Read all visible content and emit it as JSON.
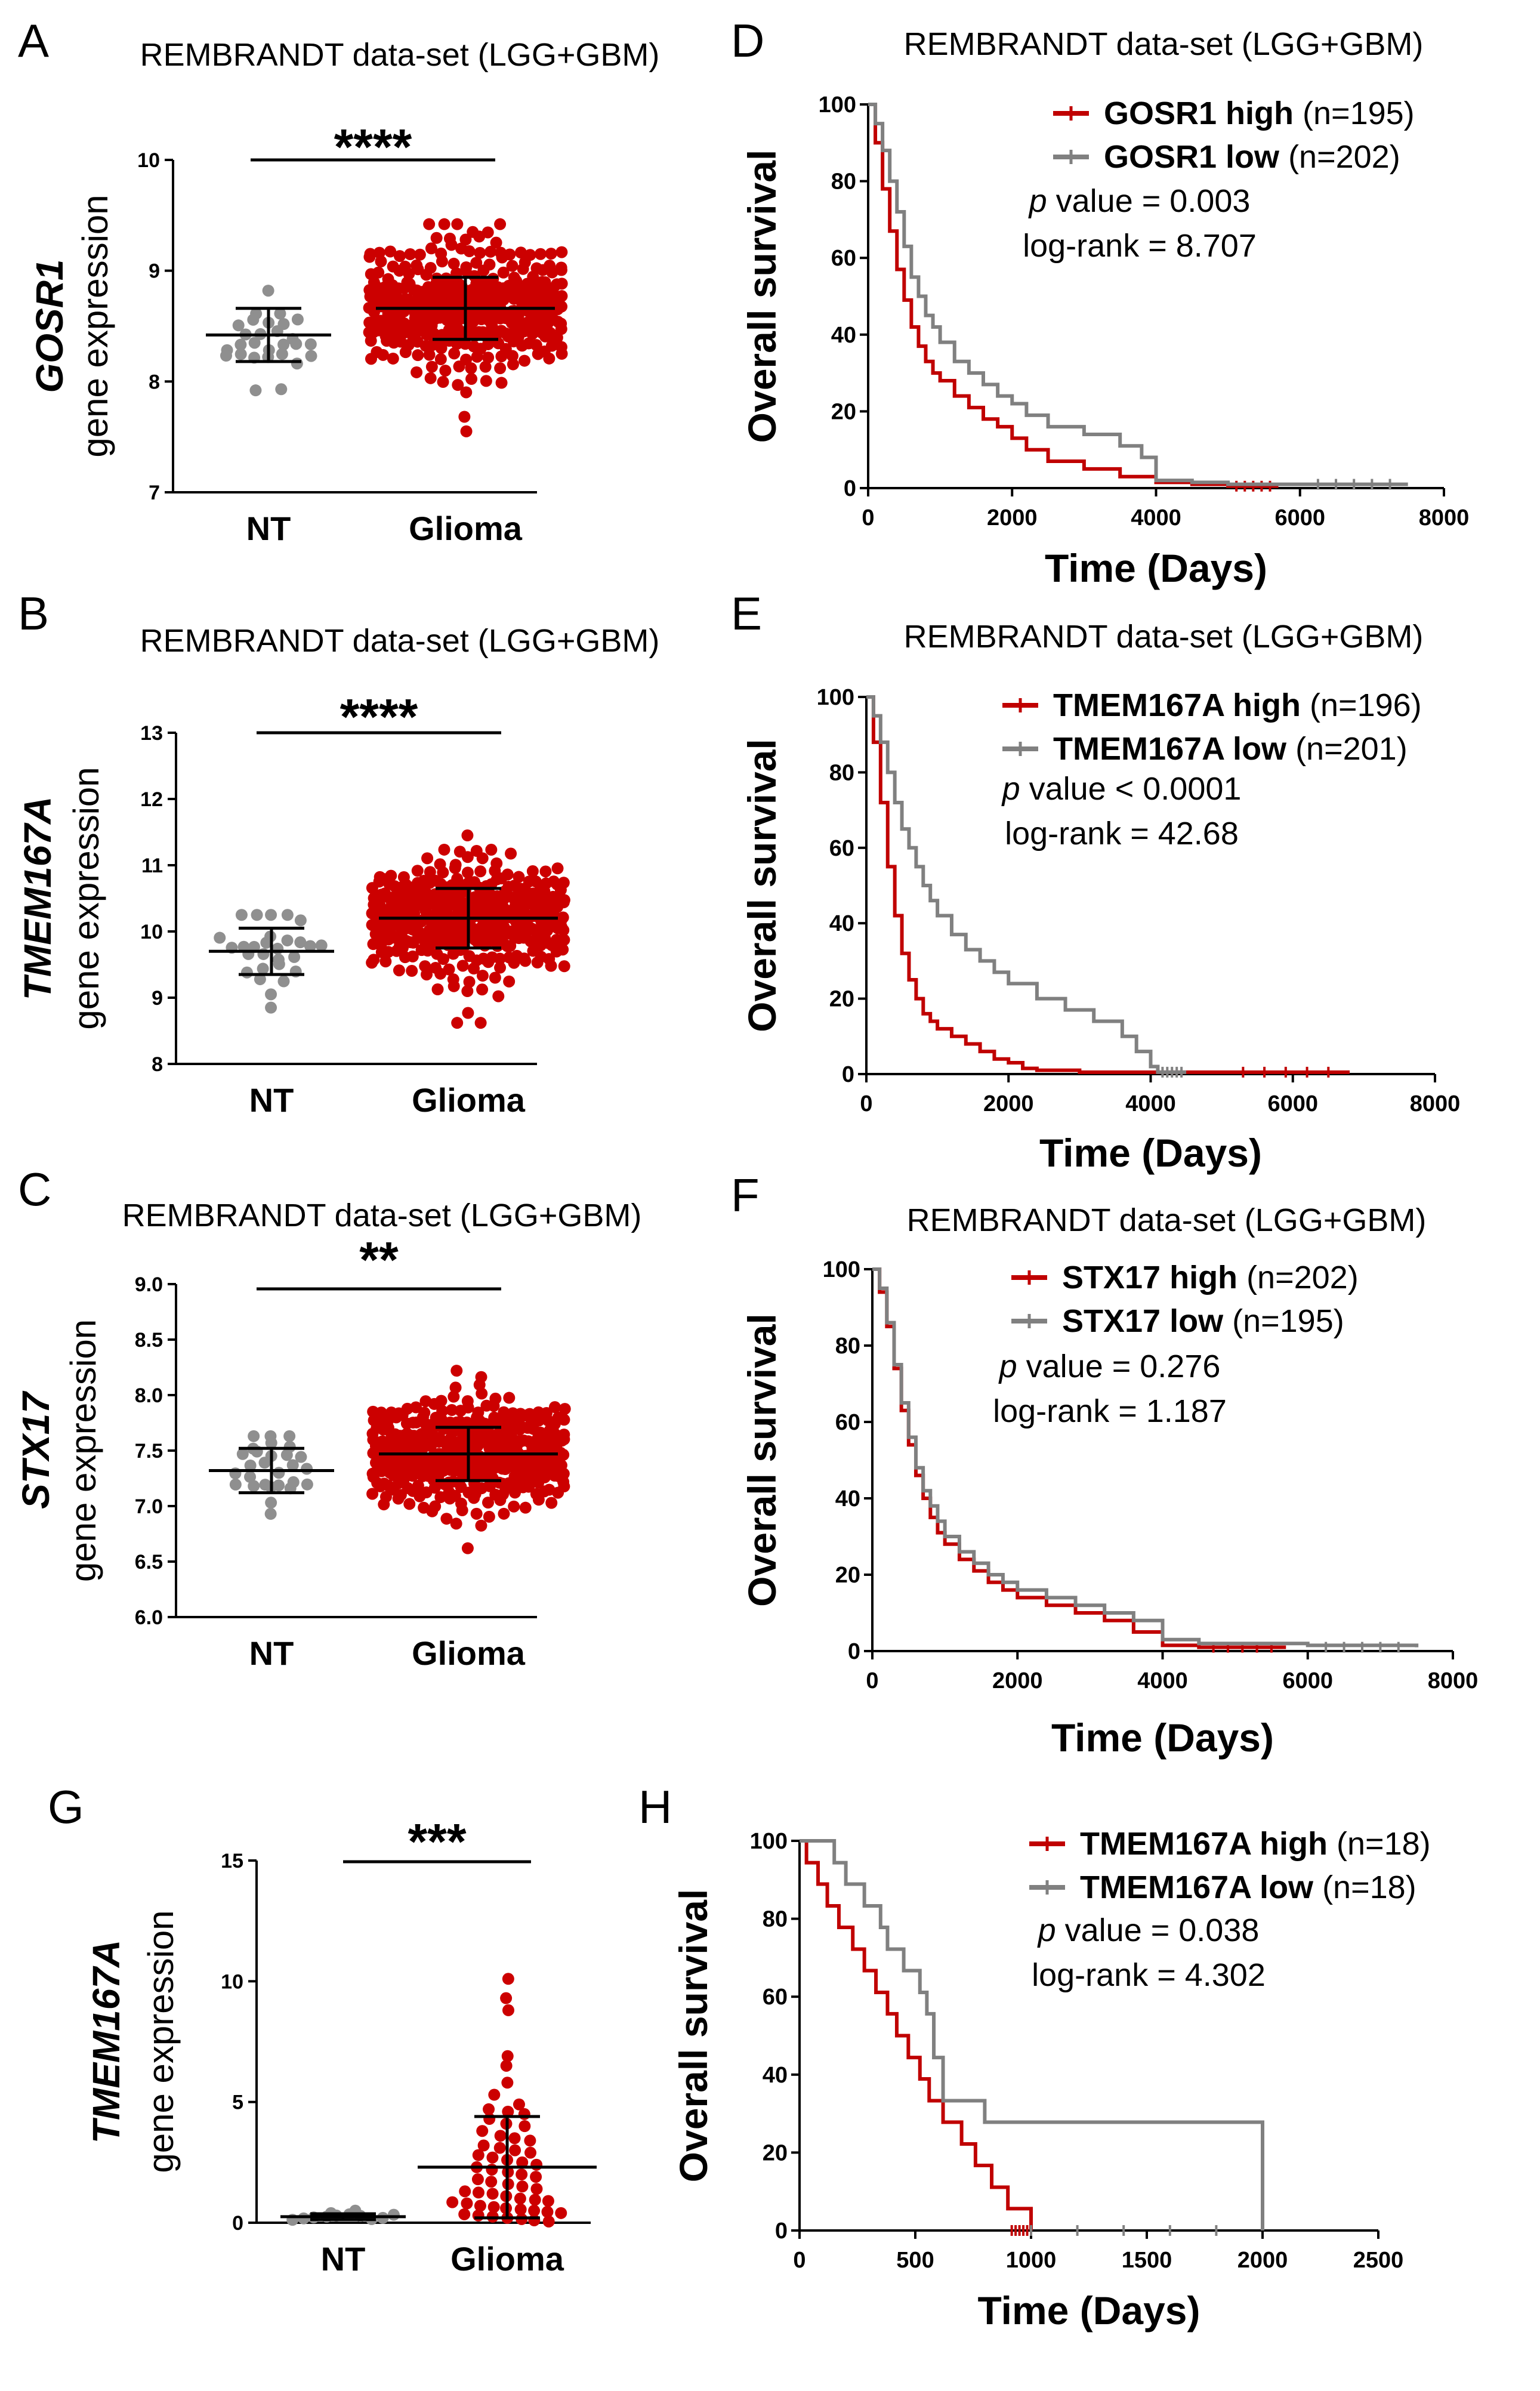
{
  "colors": {
    "high": "#c00000",
    "low": "#808080",
    "nt_dot": "#8f8f8f",
    "glioma_dot": "#cc0000",
    "axis": "#000000"
  },
  "chart_data": [
    {
      "panel": "A",
      "type": "scatter",
      "title": "REMBRANDT data-set (LGG+GBM)",
      "ylabel_gene": "GOSR1",
      "ylabel_suffix": "gene expression",
      "ylim": [
        7,
        10
      ],
      "yticks": [
        7,
        8,
        9,
        10
      ],
      "ytick_labels": [
        "7",
        "8",
        "9",
        "10"
      ],
      "categories": [
        "NT",
        "Glioma"
      ],
      "significance": "****",
      "groups": [
        {
          "name": "NT",
          "n": 28,
          "mean": 8.42,
          "sd": 0.24,
          "min": 7.92,
          "max": 8.82
        },
        {
          "name": "Glioma",
          "n": 420,
          "mean": 8.66,
          "sd": 0.28,
          "min": 7.55,
          "max": 9.42
        }
      ]
    },
    {
      "panel": "B",
      "type": "scatter",
      "title": "REMBRANDT data-set (LGG+GBM)",
      "ylabel_gene": "TMEM167A",
      "ylabel_suffix": "gene expression",
      "ylim": [
        8,
        13
      ],
      "yticks": [
        8,
        9,
        10,
        11,
        12,
        13
      ],
      "ytick_labels": [
        "8",
        "9",
        "10",
        "11",
        "12",
        "13"
      ],
      "categories": [
        "NT",
        "Glioma"
      ],
      "significance": "****",
      "groups": [
        {
          "name": "NT",
          "n": 28,
          "mean": 9.7,
          "sd": 0.35,
          "min": 8.85,
          "max": 10.25
        },
        {
          "name": "Glioma",
          "n": 420,
          "mean": 10.2,
          "sd": 0.45,
          "min": 8.62,
          "max": 11.45
        }
      ]
    },
    {
      "panel": "C",
      "type": "scatter",
      "title": "REMBRANDT data-set (LGG+GBM)",
      "ylabel_gene": "STX17",
      "ylabel_suffix": "gene expression",
      "ylim": [
        6.0,
        9.0
      ],
      "yticks": [
        6.0,
        6.5,
        7.0,
        7.5,
        8.0,
        8.5,
        9.0
      ],
      "ytick_labels": [
        "6.0",
        "6.5",
        "7.0",
        "7.5",
        "8.0",
        "8.5",
        "9.0"
      ],
      "categories": [
        "NT",
        "Glioma"
      ],
      "significance": "**",
      "groups": [
        {
          "name": "NT",
          "n": 28,
          "mean": 7.32,
          "sd": 0.2,
          "min": 6.93,
          "max": 7.63
        },
        {
          "name": "Glioma",
          "n": 420,
          "mean": 7.47,
          "sd": 0.24,
          "min": 6.62,
          "max": 8.22
        }
      ]
    },
    {
      "panel": "G",
      "type": "scatter",
      "title": "",
      "ylabel_gene": "TMEM167A",
      "ylabel_suffix": "gene expression",
      "ylim": [
        0,
        15
      ],
      "yticks": [
        0,
        5,
        10,
        15
      ],
      "ytick_labels": [
        "0",
        "5",
        "10",
        "15"
      ],
      "categories": [
        "NT",
        "Glioma"
      ],
      "significance": "***",
      "groups": [
        {
          "name": "NT",
          "n": 12,
          "mean": 0.25,
          "sd": 0.12,
          "min": 0.05,
          "max": 0.55,
          "points": [
            0.12,
            0.18,
            0.22,
            0.25,
            0.3,
            0.35,
            0.28,
            0.4,
            0.15,
            0.5,
            0.2,
            0.33
          ]
        },
        {
          "name": "Glioma",
          "n": 60,
          "mean": 2.3,
          "sd": 2.1,
          "min": 0.05,
          "max": 10.1,
          "points": [
            10.1,
            9.3,
            8.8,
            6.9,
            6.5,
            5.8,
            5.3,
            4.9,
            4.7,
            4.6,
            4.5,
            4.3,
            4.1,
            4.0,
            3.8,
            3.6,
            3.5,
            3.4,
            3.2,
            3.1,
            3.0,
            2.9,
            2.8,
            2.7,
            2.6,
            2.5,
            2.4,
            2.3,
            2.2,
            2.1,
            2.0,
            1.9,
            1.8,
            1.7,
            1.6,
            1.5,
            1.4,
            1.3,
            1.25,
            1.2,
            1.1,
            1.0,
            0.95,
            0.9,
            0.85,
            0.8,
            0.7,
            0.65,
            0.6,
            0.55,
            0.5,
            0.45,
            0.4,
            0.35,
            0.3,
            0.25,
            0.2,
            0.15,
            0.1,
            0.05
          ]
        }
      ]
    },
    {
      "panel": "D",
      "type": "line",
      "title": "REMBRANDT data-set (LGG+GBM)",
      "xlabel": "Time (Days)",
      "ylabel": "Overall survival",
      "xlim": [
        0,
        8000
      ],
      "ylim": [
        0,
        100
      ],
      "xticks": [
        0,
        2000,
        4000,
        6000,
        8000
      ],
      "yticks": [
        0,
        20,
        40,
        60,
        80,
        100
      ],
      "stats": {
        "p_label": "p",
        "p_text": " value = 0.003",
        "logrank_text": "log-rank =  8.707"
      },
      "series": [
        {
          "name": "GOSR1 high",
          "n_text": "(n=195)",
          "color": "#c00000",
          "end": 5700,
          "x": [
            0,
            100,
            200,
            300,
            400,
            500,
            600,
            700,
            800,
            900,
            1000,
            1200,
            1400,
            1600,
            1800,
            2000,
            2200,
            2500,
            3000,
            3500,
            4000,
            4500,
            5000,
            5700
          ],
          "y": [
            100,
            90,
            78,
            67,
            57,
            49,
            42,
            37,
            33,
            30,
            28,
            24,
            21,
            18,
            16,
            13,
            10,
            7,
            5,
            3,
            1.5,
            1,
            0.5,
            0.5
          ]
        },
        {
          "name": "GOSR1 low",
          "n_text": "(n=202)",
          "color": "#808080",
          "end": 7500,
          "x": [
            0,
            100,
            200,
            300,
            400,
            500,
            600,
            700,
            800,
            900,
            1000,
            1200,
            1400,
            1600,
            1800,
            2000,
            2200,
            2500,
            3000,
            3500,
            3800,
            4000,
            4500,
            5000,
            6000,
            7500
          ],
          "y": [
            100,
            95,
            88,
            80,
            72,
            63,
            55,
            50,
            45,
            42,
            38,
            33,
            30,
            27,
            24,
            22,
            19,
            16,
            14,
            11,
            8,
            2,
            1.5,
            1,
            1,
            1
          ]
        }
      ]
    },
    {
      "panel": "E",
      "type": "line",
      "title": "REMBRANDT data-set (LGG+GBM)",
      "xlabel": "Time (Days)",
      "ylabel": "Overall survival",
      "xlim": [
        0,
        8000
      ],
      "ylim": [
        0,
        100
      ],
      "xticks": [
        0,
        2000,
        4000,
        6000,
        8000
      ],
      "yticks": [
        0,
        20,
        40,
        60,
        80,
        100
      ],
      "stats": {
        "p_label": "p",
        "p_text": " value < 0.0001",
        "logrank_text": "log-rank =  42.68"
      },
      "series": [
        {
          "name": "TMEM167A high",
          "n_text": "(n=196)",
          "color": "#c00000",
          "end": 6800,
          "x": [
            0,
            100,
            200,
            300,
            400,
            500,
            600,
            700,
            800,
            900,
            1000,
            1200,
            1400,
            1600,
            1800,
            2000,
            2200,
            2400,
            3000,
            4000,
            5000,
            6800
          ],
          "y": [
            100,
            88,
            72,
            55,
            42,
            32,
            25,
            20,
            16,
            14,
            12,
            10,
            8,
            6,
            4,
            3,
            1.5,
            1,
            0.5,
            0.5,
            0.5,
            0.5
          ]
        },
        {
          "name": "TMEM167A low",
          "n_text": "(n=201)",
          "color": "#808080",
          "end": 4500,
          "x": [
            0,
            100,
            200,
            300,
            400,
            500,
            600,
            700,
            800,
            900,
            1000,
            1200,
            1400,
            1600,
            1800,
            2000,
            2400,
            2800,
            3200,
            3600,
            3800,
            4000,
            4100,
            4500
          ],
          "y": [
            100,
            95,
            88,
            80,
            72,
            65,
            60,
            55,
            50,
            46,
            42,
            37,
            33,
            30,
            27,
            24,
            20,
            17,
            14,
            10,
            6,
            2,
            0.5,
            0.5
          ]
        }
      ]
    },
    {
      "panel": "F",
      "type": "line",
      "title": "REMBRANDT data-set (LGG+GBM)",
      "xlabel": "Time (Days)",
      "ylabel": "Overall survival",
      "xlim": [
        0,
        8000
      ],
      "ylim": [
        0,
        100
      ],
      "xticks": [
        0,
        2000,
        4000,
        6000,
        8000
      ],
      "yticks": [
        0,
        20,
        40,
        60,
        80,
        100
      ],
      "stats": {
        "p_label": "p",
        "p_text": " value = 0.276",
        "logrank_text": "log-rank =  1.187"
      },
      "series": [
        {
          "name": "STX17 high",
          "n_text": "(n=202)",
          "color": "#c00000",
          "end": 5700,
          "x": [
            0,
            100,
            200,
            300,
            400,
            500,
            600,
            700,
            800,
            900,
            1000,
            1200,
            1400,
            1600,
            1800,
            2000,
            2400,
            2800,
            3200,
            3600,
            4000,
            4500,
            5700
          ],
          "y": [
            100,
            94,
            85,
            74,
            63,
            54,
            46,
            40,
            35,
            31,
            28,
            24,
            21,
            18,
            16,
            14,
            12,
            10,
            8,
            5,
            1.5,
            1,
            1
          ]
        },
        {
          "name": "STX17 low",
          "n_text": "(n=195)",
          "color": "#808080",
          "end": 7500,
          "x": [
            0,
            100,
            200,
            300,
            400,
            500,
            600,
            700,
            800,
            900,
            1000,
            1200,
            1400,
            1600,
            1800,
            2000,
            2400,
            2800,
            3200,
            3600,
            4000,
            4500,
            5000,
            6000,
            7500
          ],
          "y": [
            100,
            95,
            86,
            75,
            65,
            56,
            48,
            42,
            38,
            34,
            30,
            26,
            23,
            20,
            18,
            16,
            14,
            12,
            10,
            8,
            3,
            2,
            2,
            1.5,
            1
          ]
        }
      ]
    },
    {
      "panel": "H",
      "type": "line",
      "title": "",
      "xlabel": "Time (Days)",
      "ylabel": "Overall survival",
      "xlim": [
        0,
        2500
      ],
      "ylim": [
        0,
        100
      ],
      "xticks": [
        0,
        500,
        1000,
        1500,
        2000,
        2500
      ],
      "yticks": [
        0,
        20,
        40,
        60,
        80,
        100
      ],
      "stats": {
        "p_label": "p",
        "p_text": " value = 0.038",
        "logrank_text": "log-rank =  4.302"
      },
      "series": [
        {
          "name": "TMEM167A high",
          "n_text": "(n=18)",
          "color": "#c00000",
          "end": 1000,
          "x": [
            0,
            30,
            80,
            120,
            170,
            230,
            280,
            330,
            380,
            420,
            470,
            520,
            560,
            620,
            700,
            760,
            830,
            900,
            1000
          ],
          "y": [
            100,
            94.4,
            88.9,
            83.3,
            77.8,
            72.2,
            66.7,
            61.1,
            55.6,
            50,
            44.4,
            38.9,
            33.3,
            27.8,
            22.2,
            16.7,
            11.1,
            5.6,
            0
          ]
        },
        {
          "name": "TMEM167A low",
          "n_text": "(n=18)",
          "color": "#808080",
          "end": 2000,
          "x": [
            0,
            150,
            200,
            280,
            350,
            380,
            450,
            520,
            550,
            580,
            620,
            800,
            2000
          ],
          "y": [
            100,
            94.4,
            88.9,
            83.3,
            77.8,
            72.2,
            66.7,
            61.1,
            55.6,
            44.4,
            33.3,
            27.8,
            0
          ]
        }
      ]
    }
  ]
}
